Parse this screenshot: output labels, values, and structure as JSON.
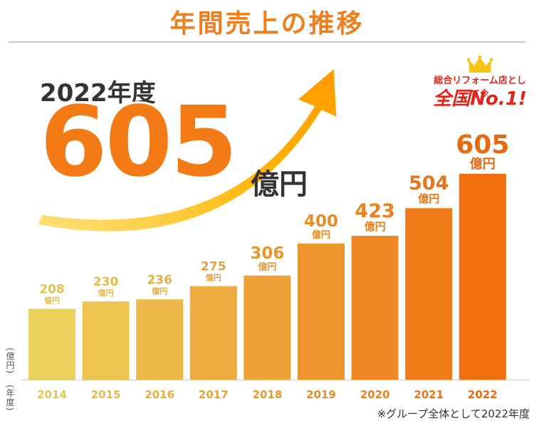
{
  "title": "年間売上の推移",
  "highlight": {
    "year_label": "2022年度",
    "value": "605",
    "unit": "億円"
  },
  "badge": {
    "line1": "総合リフォーム店として※",
    "line2": "全国No.1!"
  },
  "axis": {
    "y_unit_label": "(億円)",
    "x_unit_label": "(年度)"
  },
  "footnote": "※グループ全体として2022年度",
  "colors": {
    "title": "#f07e1c",
    "accent": "#f37a14",
    "badge": "#e2231a"
  },
  "chart_data": {
    "type": "bar",
    "categories": [
      "2014",
      "2015",
      "2016",
      "2017",
      "2018",
      "2019",
      "2020",
      "2021",
      "2022"
    ],
    "values": [
      208,
      230,
      236,
      275,
      306,
      400,
      423,
      504,
      605
    ],
    "value_unit_label": "億円",
    "xlabel": "(年度)",
    "ylabel": "(億円)",
    "ylim": [
      0,
      605
    ],
    "grid": false,
    "legend": "none"
  }
}
